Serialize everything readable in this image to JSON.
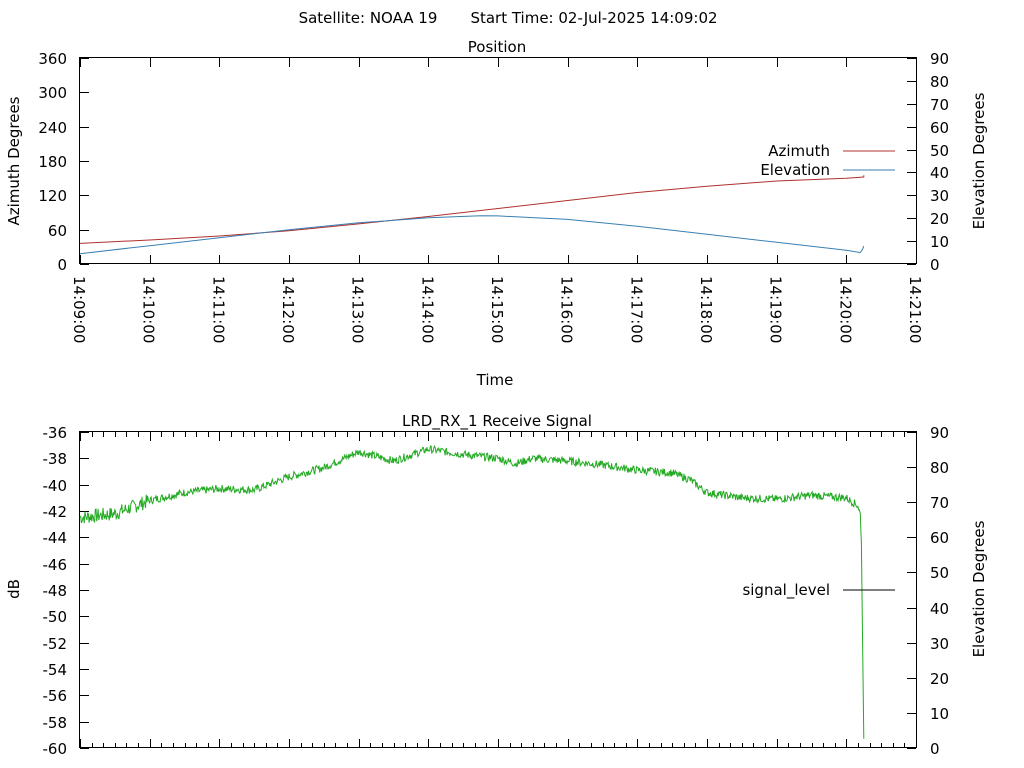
{
  "header": {
    "satellite_label": "Satellite: NOAA 19",
    "start_time_label": "Start Time: 02-Jul-2025 14:09:02"
  },
  "chart_data": [
    {
      "type": "line",
      "title": "Position",
      "xlabel": "Time",
      "ylabel": "Azimuth Degrees",
      "y2label": "Elevation Degrees",
      "xlim": [
        "14:09:00",
        "14:21:00"
      ],
      "ylim": [
        0,
        360
      ],
      "y2lim": [
        0,
        90
      ],
      "x_ticks": [
        "14:09:00",
        "14:10:00",
        "14:11:00",
        "14:12:00",
        "14:13:00",
        "14:14:00",
        "14:15:00",
        "14:16:00",
        "14:17:00",
        "14:18:00",
        "14:19:00",
        "14:20:00",
        "14:21:00"
      ],
      "y_ticks": [
        0,
        60,
        120,
        180,
        240,
        300,
        360
      ],
      "y2_ticks": [
        0,
        10,
        20,
        30,
        40,
        50,
        60,
        70,
        80,
        90
      ],
      "legend_position": "right",
      "grid": false,
      "series": [
        {
          "name": "Azimuth",
          "axis": "left",
          "color": "#b03030",
          "x": [
            "14:09:00",
            "14:10:00",
            "14:11:00",
            "14:12:00",
            "14:13:00",
            "14:14:00",
            "14:15:00",
            "14:16:00",
            "14:17:00",
            "14:18:00",
            "14:19:00",
            "14:20:00",
            "14:20:15",
            "14:20:15"
          ],
          "y": [
            36,
            42,
            49,
            58,
            70,
            83,
            97,
            111,
            125,
            136,
            145,
            150,
            152,
            155
          ]
        },
        {
          "name": "Elevation",
          "axis": "right",
          "color": "#3a7fb0",
          "x": [
            "14:09:00",
            "14:10:00",
            "14:11:00",
            "14:12:00",
            "14:13:00",
            "14:14:00",
            "14:14:45",
            "14:15:00",
            "14:16:00",
            "14:17:00",
            "14:18:00",
            "14:19:00",
            "14:20:00",
            "14:20:12",
            "14:20:14",
            "14:20:15"
          ],
          "y": [
            4.5,
            8,
            11.5,
            15,
            18,
            20.2,
            21.1,
            21,
            19.5,
            16.5,
            13,
            9.5,
            6,
            5,
            6.5,
            7.8
          ]
        }
      ]
    },
    {
      "type": "line",
      "title": "LRD_RX_1 Receive Signal",
      "xlabel": "",
      "ylabel": "dB",
      "y2label": "Elevation Degrees",
      "xlim": [
        "14:09:00",
        "14:21:00"
      ],
      "ylim": [
        -60,
        -36
      ],
      "y2lim": [
        0,
        90
      ],
      "y_ticks": [
        -36,
        -38,
        -40,
        -42,
        -44,
        -46,
        -48,
        -50,
        -52,
        -54,
        -56,
        -58,
        -60
      ],
      "y2_ticks": [
        0,
        10,
        20,
        30,
        40,
        50,
        60,
        70,
        80,
        90
      ],
      "legend_position": "right",
      "grid": false,
      "series": [
        {
          "name": "signal_level",
          "axis": "left",
          "color": "#22aa22",
          "x": [
            "14:09:00",
            "14:09:30",
            "14:10:00",
            "14:10:30",
            "14:11:00",
            "14:11:30",
            "14:12:00",
            "14:12:30",
            "14:13:00",
            "14:13:30",
            "14:14:00",
            "14:14:30",
            "14:15:00",
            "14:15:15",
            "14:15:30",
            "14:16:00",
            "14:16:30",
            "14:17:00",
            "14:17:30",
            "14:17:45",
            "14:18:00",
            "14:18:30",
            "14:19:00",
            "14:19:30",
            "14:20:00",
            "14:20:10",
            "14:20:12",
            "14:20:13",
            "14:20:14",
            "14:20:15"
          ],
          "y": [
            -42.5,
            -42.2,
            -41.2,
            -40.6,
            -40.3,
            -40.4,
            -39.4,
            -38.7,
            -37.5,
            -38.2,
            -37.3,
            -37.7,
            -38.0,
            -38.4,
            -38.0,
            -38.2,
            -38.5,
            -38.9,
            -39.1,
            -39.6,
            -40.6,
            -41.0,
            -41.1,
            -40.8,
            -41.0,
            -41.6,
            -42.2,
            -44.5,
            -52.0,
            -59.3
          ]
        }
      ]
    }
  ]
}
